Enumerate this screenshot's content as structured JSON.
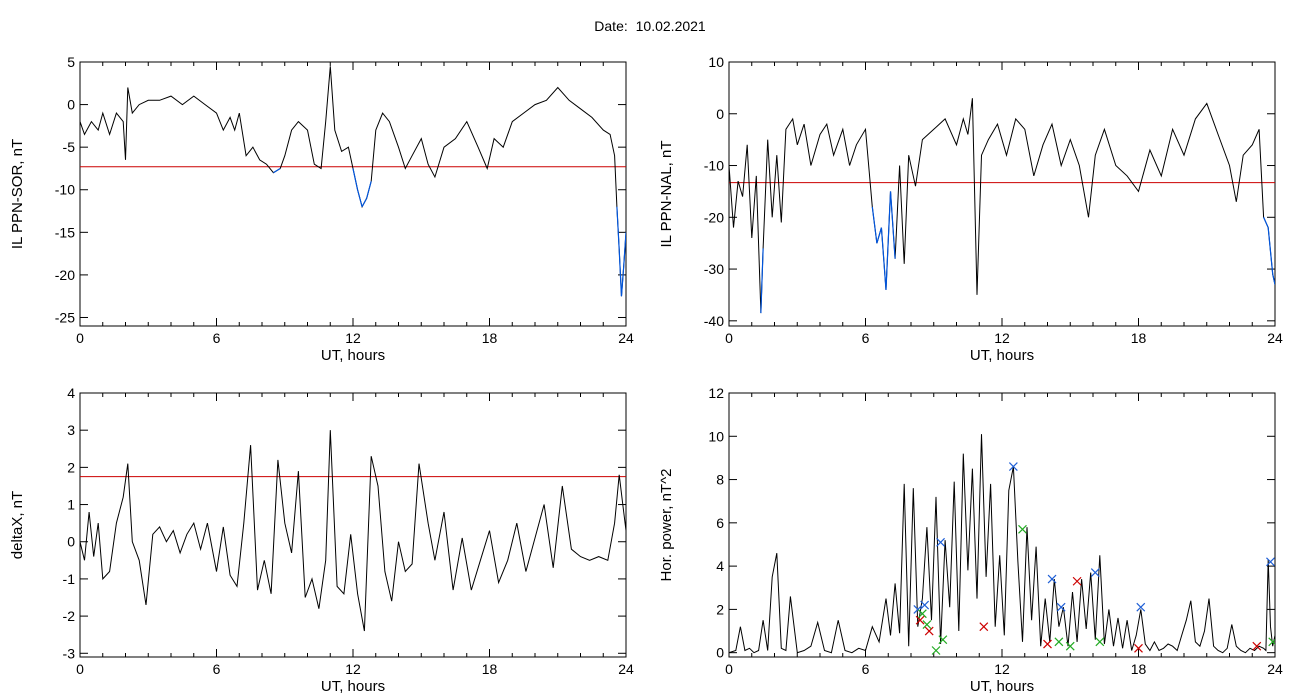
{
  "header": {
    "date_label": "Date:",
    "date_value": "10.02.2021"
  },
  "colors": {
    "trace": "#000000",
    "threshold": "#cc0000",
    "below_threshold": "#0055dd",
    "marker_blue": "#1f5fd6",
    "marker_red": "#cc0000",
    "marker_green": "#22aa22"
  },
  "chart_data": [
    {
      "type": "line",
      "id": "il-sor",
      "title": "",
      "xlabel": "UT, hours",
      "ylabel": "IL PPN-SOR, nT",
      "xlim": [
        0,
        24
      ],
      "ylim": [
        -26,
        5
      ],
      "xticks": [
        0,
        6,
        12,
        18,
        24
      ],
      "yticks": [
        5,
        0,
        -5,
        -10,
        -15,
        -20,
        -25
      ],
      "threshold": -7.3,
      "highlight_below_threshold": true,
      "x": [
        0,
        0.2,
        0.5,
        0.8,
        1.0,
        1.3,
        1.6,
        1.9,
        2.0,
        2.1,
        2.3,
        2.6,
        3.0,
        3.5,
        4.0,
        4.5,
        5.0,
        5.5,
        6.0,
        6.3,
        6.6,
        6.8,
        7.0,
        7.3,
        7.6,
        7.9,
        8.2,
        8.5,
        8.8,
        9.0,
        9.3,
        9.6,
        10.0,
        10.3,
        10.6,
        10.8,
        11.0,
        11.2,
        11.5,
        11.8,
        12.0,
        12.2,
        12.4,
        12.6,
        12.8,
        13.0,
        13.3,
        13.6,
        14.0,
        14.3,
        14.6,
        15.0,
        15.3,
        15.6,
        16.0,
        16.5,
        17.0,
        17.5,
        17.9,
        18.2,
        18.6,
        19.0,
        19.5,
        20.0,
        20.5,
        21.0,
        21.5,
        22.0,
        22.5,
        23.0,
        23.3,
        23.5,
        23.6,
        23.7,
        23.8,
        23.9,
        24.0
      ],
      "y": [
        -2,
        -3.5,
        -2,
        -3,
        -1,
        -3.5,
        -1,
        -2,
        -6.5,
        2,
        -1,
        0,
        0.5,
        0.5,
        1,
        0,
        1,
        0,
        -1,
        -3,
        -1.5,
        -3,
        -1,
        -6,
        -5,
        -6.5,
        -7,
        -8,
        -7.5,
        -6,
        -3,
        -2,
        -3,
        -7,
        -7.5,
        -2,
        4.5,
        -3,
        -5.5,
        -5,
        -7.5,
        -10,
        -12,
        -11,
        -9,
        -3,
        -1,
        -2,
        -5,
        -7.5,
        -6,
        -4,
        -7,
        -8.5,
        -5,
        -4,
        -2,
        -5,
        -7.5,
        -4,
        -5,
        -2,
        -1,
        0,
        0.5,
        2,
        0.5,
        -0.5,
        -1.5,
        -3,
        -3.5,
        -6,
        -12,
        -17,
        -22.5,
        -19,
        -15
      ]
    },
    {
      "type": "line",
      "id": "il-nal",
      "title": "",
      "xlabel": "UT, hours",
      "ylabel": "IL PPN-NAL, nT",
      "xlim": [
        0,
        24
      ],
      "ylim": [
        -41,
        10
      ],
      "xticks": [
        0,
        6,
        12,
        18,
        24
      ],
      "yticks": [
        10,
        0,
        -10,
        -20,
        -30,
        -40
      ],
      "threshold": -13.3,
      "highlight_below_threshold": true,
      "x": [
        0,
        0.2,
        0.4,
        0.6,
        0.8,
        1.0,
        1.2,
        1.4,
        1.5,
        1.7,
        1.9,
        2.1,
        2.3,
        2.5,
        2.8,
        3.0,
        3.3,
        3.6,
        4.0,
        4.3,
        4.6,
        5.0,
        5.3,
        5.6,
        6.0,
        6.3,
        6.5,
        6.7,
        6.9,
        7.1,
        7.3,
        7.5,
        7.7,
        7.9,
        8.2,
        8.5,
        9.0,
        9.5,
        10.0,
        10.3,
        10.5,
        10.7,
        10.9,
        11.1,
        11.4,
        11.8,
        12.2,
        12.6,
        13.0,
        13.4,
        13.8,
        14.2,
        14.6,
        15.0,
        15.4,
        15.8,
        16.1,
        16.5,
        17.0,
        17.5,
        18.0,
        18.5,
        19.0,
        19.5,
        20.0,
        20.5,
        21.0,
        21.5,
        22.0,
        22.3,
        22.6,
        23.0,
        23.3,
        23.5,
        23.7,
        23.9,
        24.0
      ],
      "y": [
        -10,
        -22,
        -13,
        -16,
        -6,
        -24,
        -12,
        -38.5,
        -26,
        -5,
        -20,
        -8,
        -21,
        -3,
        -1,
        -6,
        -2,
        -10,
        -4,
        -2,
        -8,
        -3,
        -10,
        -6,
        -3,
        -18,
        -25,
        -22,
        -34,
        -15,
        -28,
        -10,
        -29,
        -8,
        -14,
        -5,
        -3,
        -1,
        -6,
        -1,
        -4,
        3,
        -35,
        -8,
        -5,
        -2,
        -8,
        -1,
        -3,
        -12,
        -6,
        -2,
        -10,
        -5,
        -10,
        -20,
        -8,
        -3,
        -10,
        -12,
        -15,
        -7,
        -12,
        -3,
        -8,
        -1,
        2,
        -4,
        -10,
        -17,
        -8,
        -6,
        -3,
        -20,
        -22,
        -31,
        -33
      ]
    },
    {
      "type": "line",
      "id": "deltax",
      "title": "",
      "xlabel": "UT, hours",
      "ylabel": "deltaX, nT",
      "xlim": [
        0,
        24
      ],
      "ylim": [
        -3.1,
        4
      ],
      "xticks": [
        0,
        6,
        12,
        18,
        24
      ],
      "yticks": [
        4,
        3,
        2,
        1,
        0,
        -1,
        -2,
        -3
      ],
      "threshold": 1.75,
      "highlight_below_threshold": false,
      "x": [
        0,
        0.2,
        0.4,
        0.6,
        0.8,
        1.0,
        1.3,
        1.6,
        1.9,
        2.1,
        2.3,
        2.6,
        2.9,
        3.2,
        3.5,
        3.8,
        4.1,
        4.4,
        4.7,
        5.0,
        5.3,
        5.6,
        6.0,
        6.3,
        6.6,
        6.9,
        7.2,
        7.5,
        7.8,
        8.1,
        8.4,
        8.7,
        9.0,
        9.3,
        9.6,
        9.9,
        10.2,
        10.5,
        10.8,
        11.0,
        11.3,
        11.6,
        11.9,
        12.2,
        12.5,
        12.8,
        13.1,
        13.4,
        13.7,
        14.0,
        14.3,
        14.6,
        14.9,
        15.3,
        15.6,
        16.0,
        16.4,
        16.8,
        17.2,
        17.6,
        18.0,
        18.4,
        18.8,
        19.2,
        19.6,
        20.0,
        20.4,
        20.8,
        21.2,
        21.6,
        22.0,
        22.4,
        22.8,
        23.2,
        23.5,
        23.7,
        23.9,
        24.0
      ],
      "y": [
        0,
        -0.5,
        0.8,
        -0.4,
        0.5,
        -1,
        -0.8,
        0.5,
        1.2,
        2.1,
        0,
        -0.5,
        -1.7,
        0.2,
        0.4,
        0,
        0.3,
        -0.3,
        0.2,
        0.5,
        -0.2,
        0.5,
        -0.8,
        0.4,
        -0.9,
        -1.2,
        0.5,
        2.6,
        -1.3,
        -0.5,
        -1.4,
        2.2,
        0.5,
        -0.3,
        1.9,
        -1.5,
        -1,
        -1.8,
        -0.5,
        3,
        -1.2,
        -1.4,
        0.2,
        -1.4,
        -2.4,
        2.3,
        1.5,
        -0.8,
        -1.6,
        0,
        -0.8,
        -0.6,
        2.1,
        0.5,
        -0.5,
        0.8,
        -1.3,
        0.1,
        -1.3,
        -0.5,
        0.3,
        -1.1,
        -0.5,
        0.5,
        -0.8,
        0.1,
        1,
        -0.7,
        1.5,
        -0.2,
        -0.4,
        -0.5,
        -0.4,
        -0.5,
        0.5,
        1.8,
        0.8,
        0.3
      ]
    },
    {
      "type": "line",
      "id": "hor-power",
      "title": "",
      "xlabel": "UT, hours",
      "ylabel": "Hor. power, nT^2",
      "xlim": [
        0,
        24
      ],
      "ylim": [
        -0.2,
        12
      ],
      "xticks": [
        0,
        6,
        12,
        18,
        24
      ],
      "yticks": [
        12,
        10,
        8,
        6,
        4,
        2,
        0
      ],
      "x": [
        0,
        0.3,
        0.5,
        0.7,
        0.9,
        1.1,
        1.3,
        1.5,
        1.7,
        1.9,
        2.1,
        2.3,
        2.5,
        2.7,
        3.0,
        3.3,
        3.6,
        3.9,
        4.2,
        4.5,
        4.8,
        5.1,
        5.4,
        5.7,
        6.0,
        6.3,
        6.6,
        6.9,
        7.1,
        7.3,
        7.5,
        7.7,
        7.9,
        8.1,
        8.3,
        8.5,
        8.7,
        8.9,
        9.1,
        9.3,
        9.5,
        9.7,
        9.9,
        10.1,
        10.3,
        10.5,
        10.7,
        10.9,
        11.1,
        11.3,
        11.5,
        11.7,
        11.9,
        12.1,
        12.3,
        12.5,
        12.7,
        12.9,
        13.1,
        13.3,
        13.5,
        13.7,
        13.9,
        14.1,
        14.3,
        14.5,
        14.7,
        14.9,
        15.1,
        15.3,
        15.5,
        15.7,
        15.9,
        16.1,
        16.3,
        16.5,
        16.7,
        16.9,
        17.1,
        17.3,
        17.5,
        17.7,
        17.9,
        18.1,
        18.3,
        18.5,
        18.7,
        18.9,
        19.1,
        19.3,
        19.5,
        19.7,
        19.9,
        20.1,
        20.3,
        20.5,
        20.7,
        20.9,
        21.1,
        21.3,
        21.5,
        21.7,
        21.9,
        22.1,
        22.3,
        22.5,
        22.7,
        22.9,
        23.1,
        23.3,
        23.5,
        23.6,
        23.7,
        23.8,
        23.9,
        24.0
      ],
      "y": [
        0,
        0.1,
        1.2,
        0.1,
        0.2,
        0,
        0.1,
        1.5,
        0.1,
        3.5,
        4.6,
        0.2,
        0.1,
        2.6,
        0,
        0.1,
        0.3,
        1.4,
        0.1,
        0,
        1.5,
        0.1,
        0,
        0.2,
        0.1,
        1.2,
        0.5,
        2.5,
        0.8,
        3.2,
        0.9,
        7.8,
        0.3,
        7.6,
        1.2,
        2.5,
        5.8,
        1.5,
        7.2,
        0.4,
        5.2,
        2.1,
        7.9,
        1,
        9.2,
        3.8,
        8.5,
        2.5,
        10.1,
        3.5,
        7.8,
        1.2,
        4.5,
        0.8,
        7.5,
        8.6,
        4.2,
        0.5,
        5.8,
        1.5,
        4.9,
        0.3,
        2.5,
        0.5,
        3.4,
        1.2,
        2.1,
        0.3,
        2.8,
        0.5,
        3.4,
        1.1,
        3.7,
        0.6,
        4.5,
        0.4,
        2,
        0.3,
        1.6,
        0.2,
        1.5,
        0.1,
        0.8,
        2,
        0.4,
        0.1,
        0.5,
        0.1,
        0.2,
        0.4,
        0.3,
        0.1,
        0.8,
        1.5,
        2.4,
        0.5,
        0.3,
        1,
        2.5,
        0.3,
        0.1,
        0,
        0.2,
        1.3,
        0.3,
        0.1,
        0,
        0.2,
        0.1,
        0.3,
        0.2,
        0.1,
        4.3,
        1.2,
        0.3,
        0.8
      ],
      "markers": [
        {
          "symbol": "x",
          "color": "blue",
          "points": [
            [
              8.3,
              2.0
            ],
            [
              8.6,
              2.2
            ],
            [
              9.3,
              5.1
            ],
            [
              12.5,
              8.6
            ],
            [
              14.2,
              3.4
            ],
            [
              14.6,
              2.1
            ],
            [
              16.1,
              3.7
            ],
            [
              18.1,
              2.1
            ],
            [
              23.8,
              4.2
            ]
          ]
        },
        {
          "symbol": "x",
          "color": "red",
          "points": [
            [
              8.4,
              1.5
            ],
            [
              8.8,
              1.0
            ],
            [
              11.2,
              1.2
            ],
            [
              14.0,
              0.4
            ],
            [
              15.3,
              3.3
            ],
            [
              18.0,
              0.2
            ],
            [
              23.2,
              0.3
            ]
          ]
        },
        {
          "symbol": "x",
          "color": "green",
          "points": [
            [
              8.5,
              1.8
            ],
            [
              8.7,
              1.3
            ],
            [
              9.1,
              0.1
            ],
            [
              9.4,
              0.6
            ],
            [
              12.9,
              5.7
            ],
            [
              14.5,
              0.5
            ],
            [
              15.0,
              0.3
            ],
            [
              16.3,
              0.5
            ],
            [
              23.9,
              0.5
            ]
          ]
        }
      ]
    }
  ]
}
